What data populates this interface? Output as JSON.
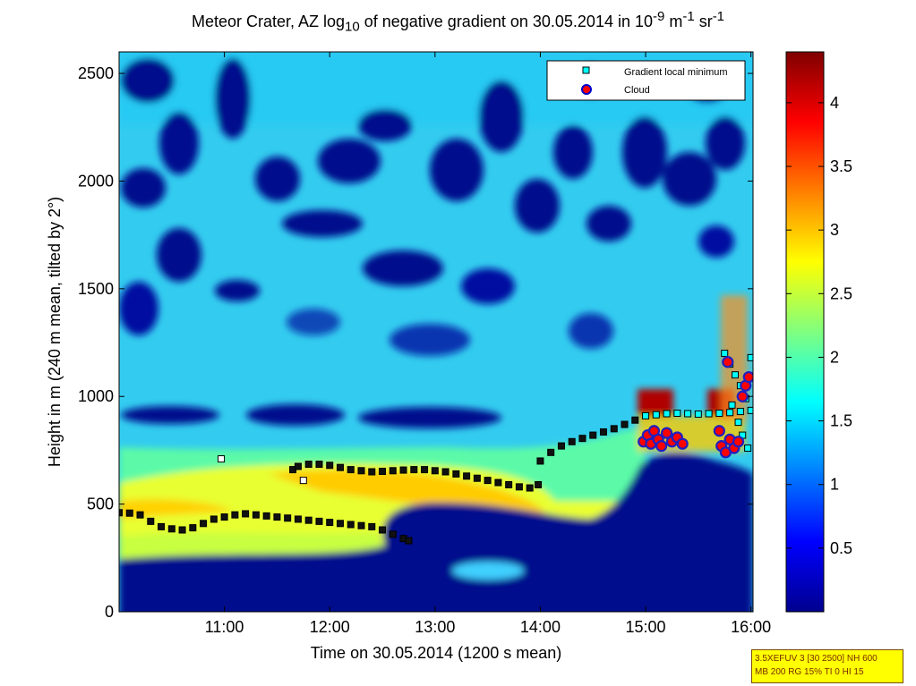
{
  "chart_data": {
    "type": "heatmap",
    "title": {
      "prefix": "Meteor Crater, AZ log",
      "sub": "10",
      "middle": " of negative gradient on 30.05.2014 in 10",
      "exp1": "-9",
      "unit1": " m",
      "exp2": "-1",
      "unit2": " sr",
      "exp3": "-1"
    },
    "xlabel": "Time on 30.05.2014 (1200 s mean)",
    "ylabel": "Height in m (240 m mean, tilted by 2°)",
    "x_ticks": [
      {
        "label": "11:00",
        "hour": 11
      },
      {
        "label": "12:00",
        "hour": 12
      },
      {
        "label": "13:00",
        "hour": 13
      },
      {
        "label": "14:00",
        "hour": 14
      },
      {
        "label": "15:00",
        "hour": 15
      },
      {
        "label": "16:00",
        "hour": 16
      }
    ],
    "xlim_hours": [
      10.0,
      16.02
    ],
    "ylim": [
      0,
      2600
    ],
    "y_ticks": [
      0,
      500,
      1000,
      1500,
      2000,
      2500
    ],
    "colorbar": {
      "range": [
        0,
        4.4
      ],
      "ticks": [
        "0.5",
        "1",
        "1.5",
        "2",
        "2.5",
        "3",
        "3.5",
        "4"
      ],
      "colormap": "jet"
    },
    "legend": {
      "placement": "top-right",
      "entries": [
        {
          "label": "Gradient local minimum",
          "marker": "square",
          "color": "#00ffff"
        },
        {
          "label": "Cloud",
          "marker": "circle",
          "color": "#ff0000"
        }
      ]
    },
    "series": [
      {
        "name": "Gradient local minimum",
        "points": [
          [
            10.0,
            460
          ],
          [
            10.1,
            458
          ],
          [
            10.2,
            450
          ],
          [
            10.3,
            420
          ],
          [
            10.4,
            395
          ],
          [
            10.5,
            385
          ],
          [
            10.6,
            380
          ],
          [
            10.7,
            390
          ],
          [
            10.8,
            410
          ],
          [
            10.9,
            430
          ],
          [
            11.0,
            440
          ],
          [
            11.1,
            450
          ],
          [
            11.2,
            455
          ],
          [
            11.3,
            450
          ],
          [
            11.4,
            445
          ],
          [
            11.5,
            440
          ],
          [
            11.6,
            435
          ],
          [
            11.7,
            430
          ],
          [
            11.8,
            425
          ],
          [
            11.9,
            420
          ],
          [
            12.0,
            415
          ],
          [
            12.1,
            410
          ],
          [
            12.2,
            405
          ],
          [
            12.3,
            400
          ],
          [
            12.4,
            395
          ],
          [
            12.5,
            380
          ],
          [
            12.6,
            360
          ],
          [
            12.7,
            340
          ],
          [
            12.75,
            330
          ],
          [
            11.65,
            660
          ],
          [
            11.7,
            675
          ],
          [
            11.8,
            685
          ],
          [
            11.9,
            685
          ],
          [
            12.0,
            680
          ],
          [
            12.1,
            670
          ],
          [
            12.2,
            660
          ],
          [
            12.3,
            655
          ],
          [
            12.4,
            650
          ],
          [
            12.5,
            652
          ],
          [
            12.6,
            655
          ],
          [
            12.7,
            658
          ],
          [
            12.8,
            660
          ],
          [
            12.9,
            660
          ],
          [
            13.0,
            655
          ],
          [
            13.1,
            650
          ],
          [
            13.2,
            640
          ],
          [
            13.3,
            630
          ],
          [
            13.4,
            620
          ],
          [
            13.5,
            610
          ],
          [
            13.6,
            600
          ],
          [
            13.7,
            590
          ],
          [
            13.8,
            580
          ],
          [
            13.9,
            575
          ],
          [
            13.98,
            590
          ],
          [
            14.0,
            700
          ],
          [
            14.1,
            740
          ],
          [
            14.2,
            770
          ],
          [
            14.3,
            790
          ],
          [
            14.4,
            805
          ],
          [
            14.5,
            820
          ],
          [
            14.6,
            835
          ],
          [
            14.7,
            850
          ],
          [
            14.8,
            870
          ],
          [
            14.9,
            890
          ],
          [
            15.0,
            910
          ],
          [
            15.1,
            915
          ],
          [
            15.2,
            920
          ],
          [
            15.3,
            922
          ],
          [
            15.4,
            920
          ],
          [
            15.5,
            918
          ],
          [
            15.6,
            920
          ],
          [
            15.7,
            922
          ],
          [
            15.8,
            925
          ],
          [
            15.9,
            930
          ],
          [
            16.0,
            935
          ],
          [
            10.97,
            710
          ],
          [
            11.75,
            610
          ],
          [
            15.75,
            1200
          ],
          [
            15.8,
            1150
          ],
          [
            15.85,
            1100
          ],
          [
            15.9,
            1050
          ],
          [
            15.95,
            990
          ],
          [
            16.0,
            1180
          ],
          [
            15.82,
            960
          ],
          [
            15.88,
            880
          ],
          [
            15.92,
            820
          ],
          [
            15.97,
            760
          ]
        ]
      },
      {
        "name": "Cloud",
        "points": [
          [
            14.98,
            790
          ],
          [
            15.02,
            820
          ],
          [
            15.05,
            780
          ],
          [
            15.08,
            840
          ],
          [
            15.12,
            800
          ],
          [
            15.15,
            770
          ],
          [
            15.2,
            830
          ],
          [
            15.25,
            790
          ],
          [
            15.3,
            810
          ],
          [
            15.35,
            780
          ],
          [
            15.7,
            840
          ],
          [
            15.72,
            770
          ],
          [
            15.76,
            740
          ],
          [
            15.8,
            800
          ],
          [
            15.84,
            760
          ],
          [
            15.88,
            790
          ],
          [
            15.92,
            1000
          ],
          [
            15.95,
            1050
          ],
          [
            15.98,
            1090
          ],
          [
            15.78,
            1160
          ]
        ]
      }
    ],
    "annotation_box": {
      "line1": "3.5XEFUV 3 [30 2500] NH 600",
      "line2": "MB 200 RG 15% TI 0 HI 15"
    }
  }
}
